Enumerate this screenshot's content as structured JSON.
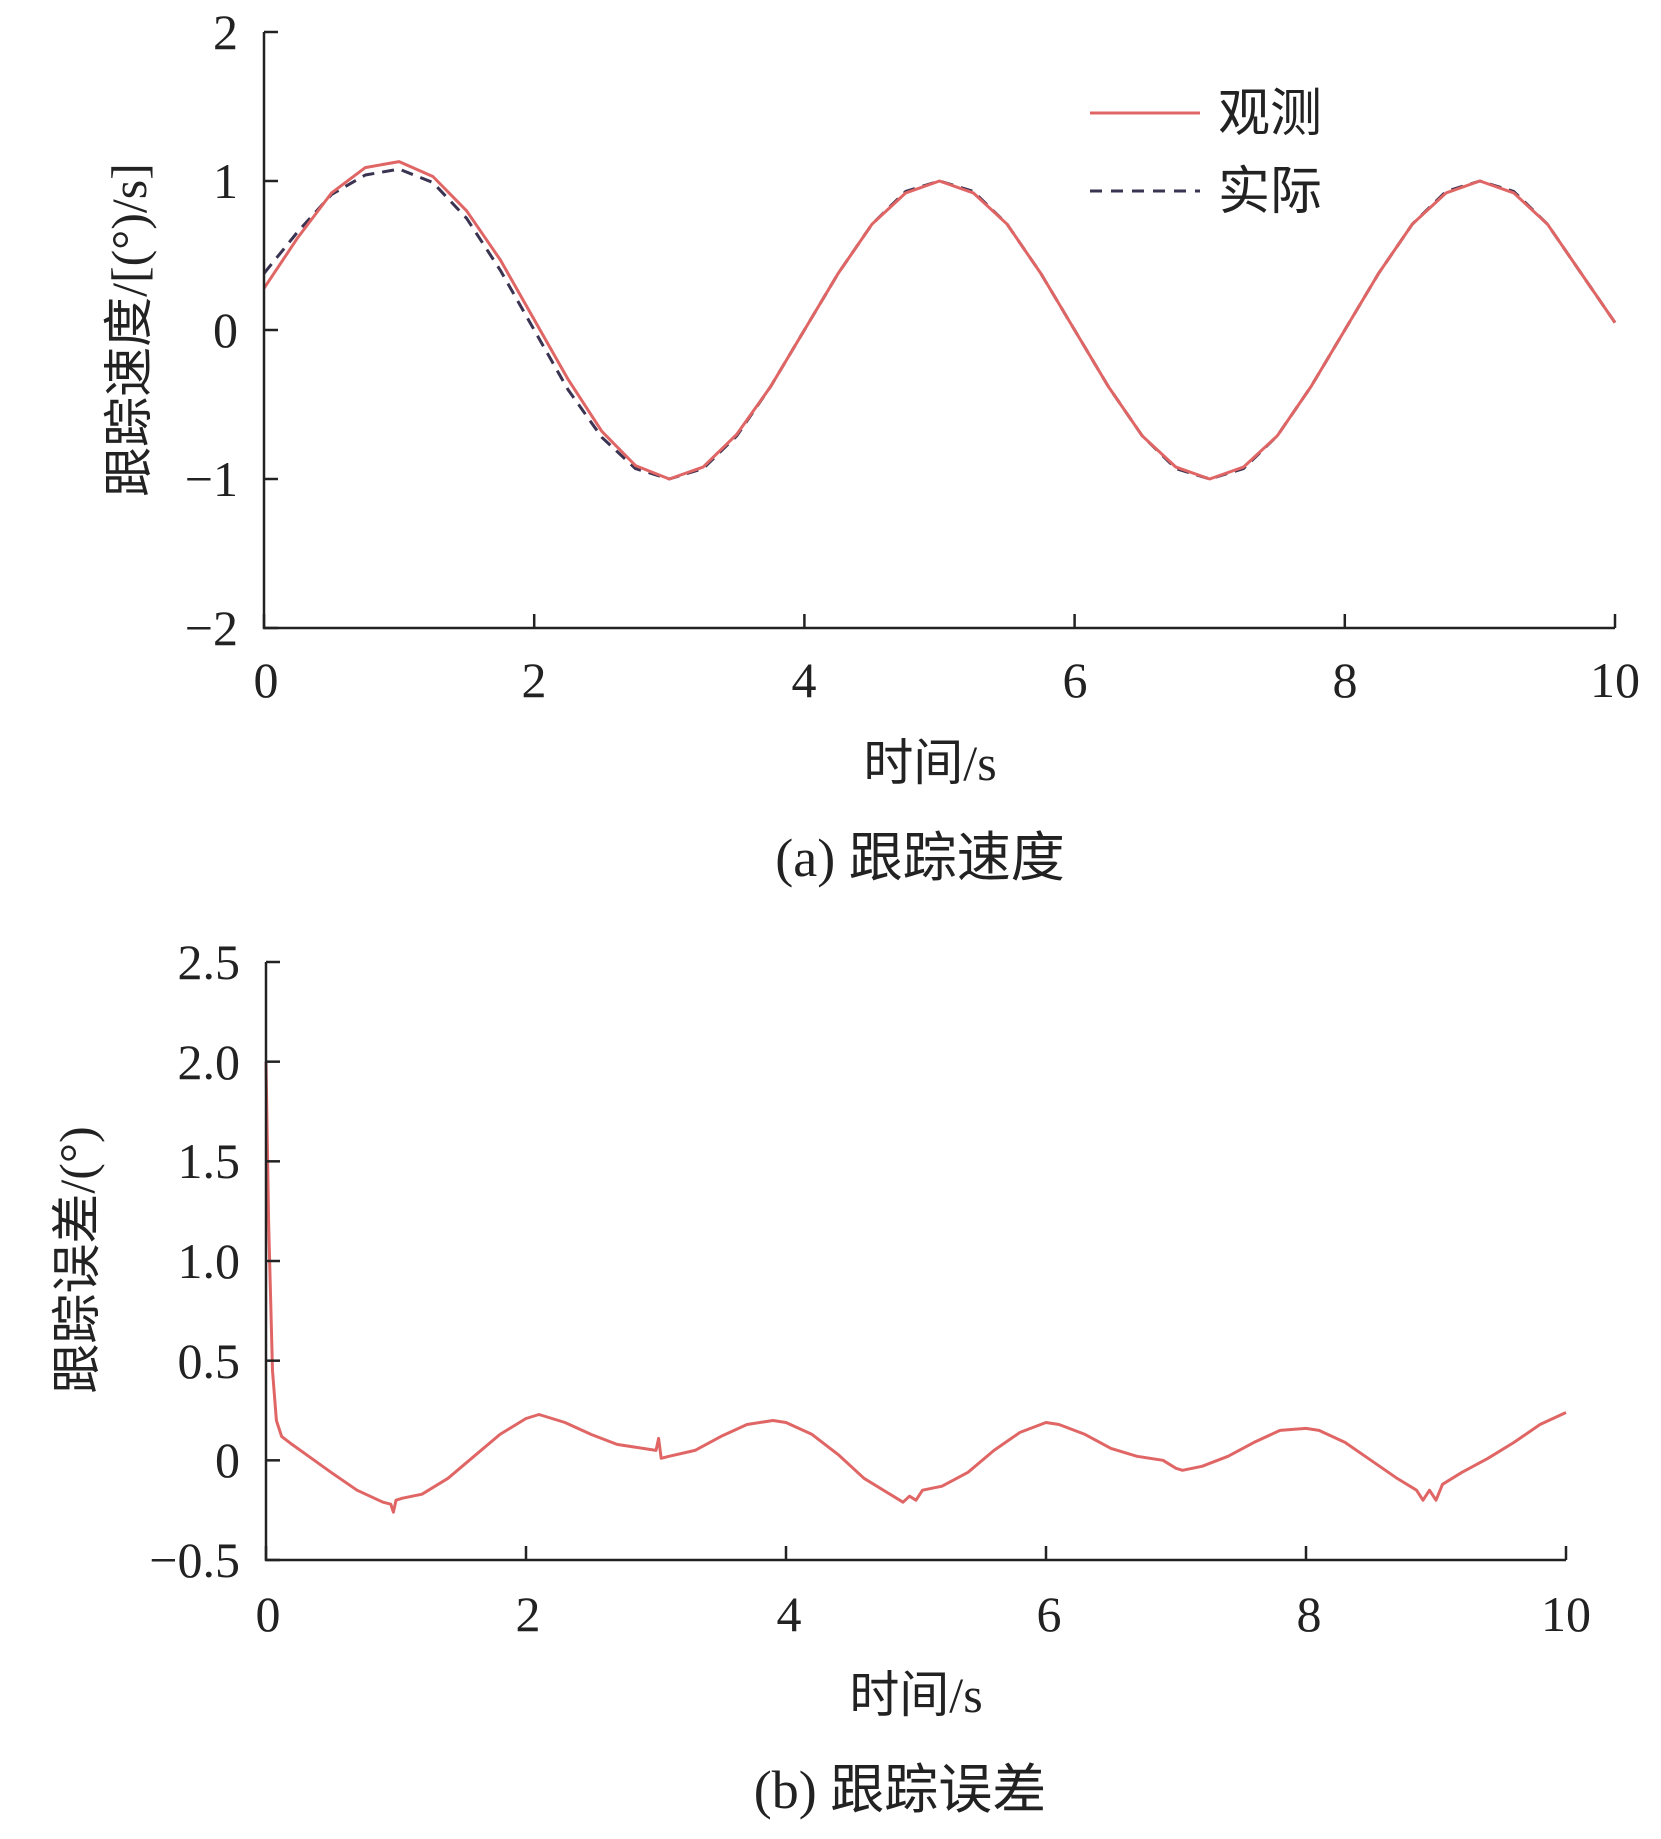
{
  "colors": {
    "observed": "#e06666",
    "actual": "#3a3352",
    "axis": "#222222"
  },
  "chart_data": [
    {
      "type": "line",
      "caption": "(a)  跟踪速度",
      "xlabel": "时间/s",
      "ylabel": "跟踪速度/[(°)/s]",
      "xlim": [
        0,
        10
      ],
      "ylim": [
        -2,
        2
      ],
      "xticks": [
        "0",
        "2",
        "4",
        "6",
        "8",
        "10"
      ],
      "yticks": [
        "2",
        "1",
        "0",
        "−1",
        "−2"
      ],
      "legend": {
        "position": "top-right",
        "entries": [
          "观测",
          "实际"
        ]
      },
      "series": [
        {
          "name": "观测",
          "style": "solid",
          "x": [
            0,
            0.25,
            0.5,
            0.75,
            1.0,
            1.25,
            1.5,
            1.75,
            2.0,
            2.25,
            2.5,
            2.75,
            3.0,
            3.25,
            3.5,
            3.75,
            4.0,
            4.25,
            4.5,
            4.75,
            5.0,
            5.25,
            5.5,
            5.75,
            6.0,
            6.25,
            6.5,
            6.75,
            7.0,
            7.25,
            7.5,
            7.75,
            8.0,
            8.25,
            8.5,
            8.75,
            9.0,
            9.25,
            9.5,
            9.75,
            10.0
          ],
          "y": [
            0.28,
            0.62,
            0.92,
            1.09,
            1.13,
            1.03,
            0.8,
            0.47,
            0.07,
            -0.33,
            -0.68,
            -0.91,
            -1.0,
            -0.92,
            -0.7,
            -0.38,
            0.0,
            0.38,
            0.71,
            0.92,
            1.0,
            0.92,
            0.71,
            0.38,
            0.0,
            -0.38,
            -0.71,
            -0.92,
            -1.0,
            -0.92,
            -0.71,
            -0.38,
            0.0,
            0.38,
            0.71,
            0.92,
            1.0,
            0.92,
            0.71,
            0.38,
            0.05
          ]
        },
        {
          "name": "实际",
          "style": "dashed",
          "x": [
            0,
            0.25,
            0.5,
            0.75,
            1.0,
            1.25,
            1.5,
            1.75,
            2.0,
            2.25,
            2.5,
            2.75,
            3.0,
            3.25,
            3.5,
            3.75,
            4.0,
            4.25,
            4.5,
            4.75,
            5.0,
            5.25,
            5.5,
            5.75,
            6.0,
            6.25,
            6.5,
            6.75,
            7.0,
            7.25,
            7.5,
            7.75,
            8.0,
            8.25,
            8.5,
            8.75,
            9.0,
            9.25,
            9.5,
            9.75,
            10.0
          ],
          "y": [
            0.38,
            0.66,
            0.91,
            1.04,
            1.08,
            0.99,
            0.75,
            0.4,
            0.0,
            -0.4,
            -0.72,
            -0.93,
            -1.0,
            -0.93,
            -0.71,
            -0.38,
            0.0,
            0.38,
            0.71,
            0.93,
            1.0,
            0.93,
            0.71,
            0.38,
            0.0,
            -0.38,
            -0.71,
            -0.93,
            -1.0,
            -0.93,
            -0.71,
            -0.38,
            0.0,
            0.38,
            0.71,
            0.93,
            1.0,
            0.93,
            0.71,
            0.38,
            0.05
          ]
        }
      ]
    },
    {
      "type": "line",
      "caption": "(b)  跟踪误差",
      "xlabel": "时间/s",
      "ylabel": "跟踪误差/(°)",
      "xlim": [
        0,
        10
      ],
      "ylim": [
        -0.5,
        2.5
      ],
      "xticks": [
        "0",
        "2",
        "4",
        "6",
        "8",
        "10"
      ],
      "yticks": [
        "2.5",
        "2.0",
        "1.5",
        "1.0",
        "0.5",
        "0",
        "−0.5"
      ],
      "series": [
        {
          "style": "solid",
          "x": [
            0,
            0.02,
            0.05,
            0.08,
            0.12,
            0.2,
            0.35,
            0.5,
            0.7,
            0.9,
            0.96,
            0.98,
            1.0,
            1.05,
            1.2,
            1.4,
            1.6,
            1.8,
            2.0,
            2.1,
            2.3,
            2.5,
            2.7,
            2.9,
            3.0,
            3.02,
            3.04,
            3.1,
            3.3,
            3.5,
            3.7,
            3.9,
            4.0,
            4.2,
            4.4,
            4.6,
            4.8,
            4.9,
            4.95,
            5.0,
            5.05,
            5.2,
            5.4,
            5.6,
            5.8,
            6.0,
            6.1,
            6.3,
            6.5,
            6.7,
            6.9,
            7.0,
            7.05,
            7.2,
            7.4,
            7.6,
            7.8,
            8.0,
            8.1,
            8.3,
            8.5,
            8.7,
            8.85,
            8.9,
            8.95,
            9.0,
            9.05,
            9.2,
            9.4,
            9.6,
            9.8,
            10.0
          ],
          "y": [
            2.0,
            1.2,
            0.45,
            0.2,
            0.12,
            0.08,
            0.01,
            -0.06,
            -0.15,
            -0.21,
            -0.22,
            -0.26,
            -0.2,
            -0.19,
            -0.17,
            -0.09,
            0.02,
            0.13,
            0.21,
            0.23,
            0.19,
            0.13,
            0.08,
            0.06,
            0.05,
            0.11,
            0.01,
            0.02,
            0.05,
            0.12,
            0.18,
            0.2,
            0.19,
            0.13,
            0.03,
            -0.09,
            -0.17,
            -0.21,
            -0.18,
            -0.2,
            -0.15,
            -0.13,
            -0.06,
            0.05,
            0.14,
            0.19,
            0.18,
            0.13,
            0.06,
            0.02,
            0.0,
            -0.04,
            -0.05,
            -0.03,
            0.02,
            0.09,
            0.15,
            0.16,
            0.15,
            0.09,
            0.0,
            -0.09,
            -0.15,
            -0.2,
            -0.15,
            -0.2,
            -0.12,
            -0.06,
            0.01,
            0.09,
            0.18,
            0.24
          ]
        }
      ]
    }
  ]
}
